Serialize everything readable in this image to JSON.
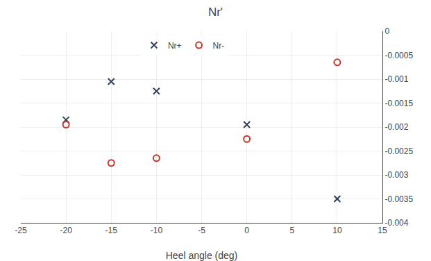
{
  "chart_data": {
    "type": "scatter",
    "title": "Nr'",
    "xlabel": "Heel angle (deg)",
    "series": [
      {
        "name": "Nr+",
        "color": "#2E4057",
        "marker": "x",
        "x": [
          -20,
          -15,
          -10,
          0,
          10
        ],
        "values": [
          -0.00185,
          -0.00105,
          -0.00125,
          -0.00195,
          -0.0035
        ]
      },
      {
        "name": "Nr-",
        "color": "#C0392B",
        "marker": "circle-open",
        "x": [
          -20,
          -15,
          -10,
          0,
          10
        ],
        "values": [
          -0.00195,
          -0.00275,
          -0.00265,
          -0.00225,
          -0.00065
        ]
      }
    ],
    "xlim": [
      -25,
      15
    ],
    "xticks": [
      -25,
      -20,
      -15,
      -10,
      -5,
      0,
      5,
      10,
      15
    ],
    "ylim": [
      -0.004,
      0
    ],
    "yticks": [
      0,
      -0.0005,
      -0.001,
      -0.0015,
      -0.002,
      -0.0025,
      -0.003,
      -0.0035,
      -0.004
    ],
    "grid": true,
    "legend": "top"
  }
}
